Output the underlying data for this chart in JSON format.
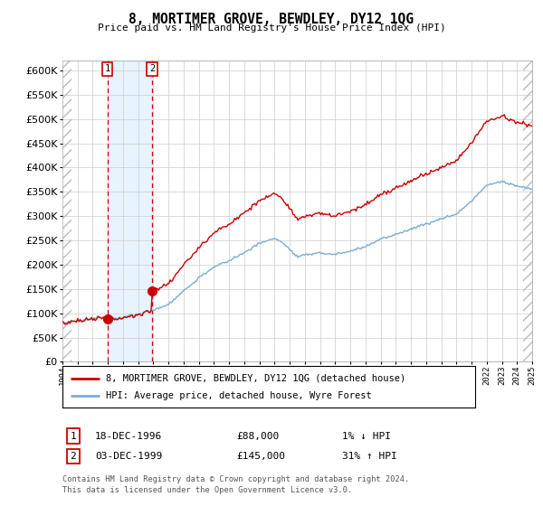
{
  "title": "8, MORTIMER GROVE, BEWDLEY, DY12 1QG",
  "subtitle": "Price paid vs. HM Land Registry's House Price Index (HPI)",
  "legend_line1": "8, MORTIMER GROVE, BEWDLEY, DY12 1QG (detached house)",
  "legend_line2": "HPI: Average price, detached house, Wyre Forest",
  "table_row1_num": "1",
  "table_row1_date": "18-DEC-1996",
  "table_row1_price": "£88,000",
  "table_row1_hpi": "1% ↓ HPI",
  "table_row2_num": "2",
  "table_row2_date": "03-DEC-1999",
  "table_row2_price": "£145,000",
  "table_row2_hpi": "31% ↑ HPI",
  "footnote1": "Contains HM Land Registry data © Crown copyright and database right 2024.",
  "footnote2": "This data is licensed under the Open Government Licence v3.0.",
  "property_color": "#cc0000",
  "hpi_color": "#7aadd4",
  "marker_color": "#cc0000",
  "vline_color": "#cc0000",
  "shade_color": "#ddeeff",
  "hatch_color": "#bbbbbb",
  "grid_color": "#cccccc",
  "background_color": "#ffffff",
  "ylim_min": 0,
  "ylim_max": 620000,
  "xlim_start": 1994,
  "xlim_end": 2025,
  "purchase1_year": 1996.96,
  "purchase2_year": 1999.92,
  "purchase1_price": 88000,
  "purchase2_price": 145000,
  "hatch_left_end": 1994.58,
  "hatch_right_start": 2024.42
}
